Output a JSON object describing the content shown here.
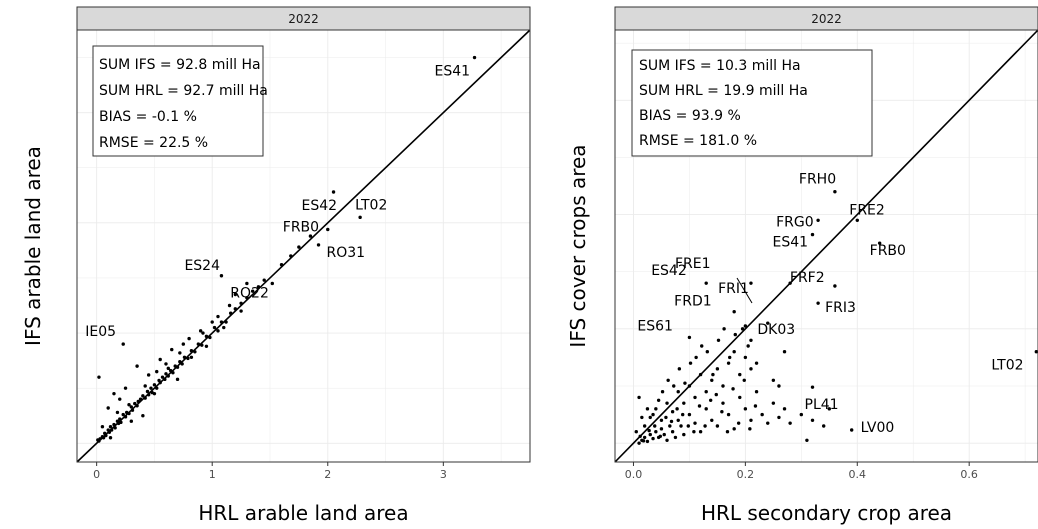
{
  "chart_data": [
    {
      "type": "scatter",
      "facet": "2022",
      "xlabel": "HRL arable land area",
      "ylabel": "IFS arable land area",
      "xlim": [
        -0.17,
        3.75
      ],
      "ylim": [
        -0.17,
        3.75
      ],
      "x_ticks": [
        0,
        1,
        2,
        3
      ],
      "grid": true,
      "identity_line": true,
      "stats": [
        "SUM IFS = 92.8 mill Ha",
        "SUM HRL = 92.7 mill Ha",
        "BIAS =  -0.1 %",
        "RMSE = 22.5 %"
      ],
      "labeled_points": [
        {
          "label": "ES41",
          "x": 3.27,
          "y": 3.5
        },
        {
          "label": "ES42",
          "x": 2.05,
          "y": 2.28
        },
        {
          "label": "LT02",
          "x": 2.28,
          "y": 2.05
        },
        {
          "label": "FRB0",
          "x": 2.0,
          "y": 1.94
        },
        {
          "label": "RO31",
          "x": 1.92,
          "y": 1.8
        },
        {
          "label": "ES24",
          "x": 1.08,
          "y": 1.52
        },
        {
          "label": "RO22",
          "x": 1.52,
          "y": 1.45
        },
        {
          "label": "IE05",
          "x": 0.23,
          "y": 0.9
        }
      ],
      "points": [
        [
          0.01,
          0.03
        ],
        [
          0.02,
          0.02
        ],
        [
          0.03,
          0.04
        ],
        [
          0.05,
          0.06
        ],
        [
          0.06,
          0.05
        ],
        [
          0.07,
          0.09
        ],
        [
          0.08,
          0.07
        ],
        [
          0.1,
          0.12
        ],
        [
          0.11,
          0.1
        ],
        [
          0.12,
          0.15
        ],
        [
          0.13,
          0.12
        ],
        [
          0.15,
          0.17
        ],
        [
          0.16,
          0.14
        ],
        [
          0.18,
          0.2
        ],
        [
          0.19,
          0.18
        ],
        [
          0.2,
          0.22
        ],
        [
          0.21,
          0.19
        ],
        [
          0.23,
          0.26
        ],
        [
          0.25,
          0.24
        ],
        [
          0.26,
          0.28
        ],
        [
          0.28,
          0.27
        ],
        [
          0.3,
          0.33
        ],
        [
          0.31,
          0.3
        ],
        [
          0.33,
          0.36
        ],
        [
          0.35,
          0.34
        ],
        [
          0.36,
          0.38
        ],
        [
          0.38,
          0.4
        ],
        [
          0.4,
          0.43
        ],
        [
          0.42,
          0.41
        ],
        [
          0.44,
          0.47
        ],
        [
          0.45,
          0.44
        ],
        [
          0.47,
          0.5
        ],
        [
          0.48,
          0.46
        ],
        [
          0.5,
          0.53
        ],
        [
          0.52,
          0.5
        ],
        [
          0.54,
          0.57
        ],
        [
          0.55,
          0.55
        ],
        [
          0.57,
          0.6
        ],
        [
          0.59,
          0.58
        ],
        [
          0.6,
          0.63
        ],
        [
          0.62,
          0.61
        ],
        [
          0.64,
          0.66
        ],
        [
          0.66,
          0.64
        ],
        [
          0.68,
          0.7
        ],
        [
          0.7,
          0.69
        ],
        [
          0.72,
          0.74
        ],
        [
          0.74,
          0.72
        ],
        [
          0.76,
          0.78
        ],
        [
          0.79,
          0.77
        ],
        [
          0.82,
          0.84
        ],
        [
          0.85,
          0.83
        ],
        [
          0.88,
          0.9
        ],
        [
          0.91,
          0.89
        ],
        [
          0.95,
          0.97
        ],
        [
          0.98,
          0.96
        ],
        [
          1.02,
          1.05
        ],
        [
          1.05,
          1.02
        ],
        [
          1.08,
          1.1
        ],
        [
          1.12,
          1.1
        ],
        [
          1.16,
          1.18
        ],
        [
          1.2,
          1.22
        ],
        [
          1.25,
          1.27
        ],
        [
          1.3,
          1.32
        ],
        [
          1.35,
          1.38
        ],
        [
          1.4,
          1.42
        ],
        [
          1.45,
          1.48
        ],
        [
          1.6,
          1.62
        ],
        [
          1.68,
          1.7
        ],
        [
          1.75,
          1.78
        ],
        [
          1.85,
          1.88
        ],
        [
          0.02,
          0.6
        ],
        [
          0.15,
          0.45
        ],
        [
          0.25,
          0.5
        ],
        [
          0.35,
          0.7
        ],
        [
          0.45,
          0.62
        ],
        [
          0.55,
          0.76
        ],
        [
          0.65,
          0.85
        ],
        [
          0.75,
          0.9
        ],
        [
          0.9,
          1.02
        ],
        [
          1.0,
          1.1
        ],
        [
          1.1,
          1.05
        ],
        [
          1.2,
          1.35
        ],
        [
          1.3,
          1.45
        ],
        [
          0.1,
          0.32
        ],
        [
          0.2,
          0.4
        ],
        [
          0.3,
          0.2
        ],
        [
          0.4,
          0.25
        ],
        [
          0.5,
          0.45
        ],
        [
          0.6,
          0.72
        ],
        [
          0.7,
          0.58
        ],
        [
          0.8,
          0.95
        ],
        [
          0.95,
          0.88
        ],
        [
          1.15,
          1.25
        ],
        [
          1.25,
          1.2
        ],
        [
          0.05,
          0.15
        ],
        [
          0.12,
          0.05
        ],
        [
          0.18,
          0.28
        ],
        [
          0.28,
          0.35
        ],
        [
          0.42,
          0.52
        ],
        [
          0.52,
          0.65
        ],
        [
          0.62,
          0.68
        ],
        [
          0.72,
          0.82
        ],
        [
          0.82,
          0.78
        ],
        [
          0.92,
          1.0
        ],
        [
          1.05,
          1.15
        ]
      ]
    },
    {
      "type": "scatter",
      "facet": "2022",
      "xlabel": "HRL secondary crop area",
      "ylabel": "IFS cover crops area",
      "xlim": [
        -0.033,
        0.723
      ],
      "ylim": [
        -0.033,
        0.723
      ],
      "x_ticks": [
        0.0,
        0.2,
        0.4,
        0.6
      ],
      "x_tick_labels": [
        "0.0",
        "0.2",
        "0.4",
        "0.6"
      ],
      "grid": true,
      "identity_line": true,
      "stats": [
        "SUM IFS = 10.3 mill Ha",
        "SUM HRL = 19.9 mill Ha",
        "BIAS =  93.9 %",
        "RMSE = 181.0 %"
      ],
      "labeled_points": [
        {
          "label": "FRH0",
          "x": 0.36,
          "y": 0.44
        },
        {
          "label": "FRG0",
          "x": 0.33,
          "y": 0.39
        },
        {
          "label": "FRE2",
          "x": 0.4,
          "y": 0.39
        },
        {
          "label": "ES41",
          "x": 0.32,
          "y": 0.365
        },
        {
          "label": "FRE1",
          "x": 0.21,
          "y": 0.28
        },
        {
          "label": "FRB0",
          "x": 0.44,
          "y": 0.35
        },
        {
          "label": "FRI1",
          "x": 0.28,
          "y": 0.28
        },
        {
          "label": "ES42",
          "x": 0.13,
          "y": 0.28
        },
        {
          "label": "FRF2",
          "x": 0.36,
          "y": 0.275
        },
        {
          "label": "FRD1",
          "x": 0.18,
          "y": 0.23
        },
        {
          "label": "FRI3",
          "x": 0.33,
          "y": 0.245
        },
        {
          "label": "DK03",
          "x": 0.2,
          "y": 0.205
        },
        {
          "label": "ES61",
          "x": 0.1,
          "y": 0.185
        },
        {
          "label": "LT02",
          "x": 0.72,
          "y": 0.16
        },
        {
          "label": "PL41",
          "x": 0.32,
          "y": 0.098
        },
        {
          "label": "LV00",
          "x": 0.39,
          "y": 0.023
        }
      ],
      "points": [
        [
          0.01,
          0.0
        ],
        [
          0.015,
          0.005
        ],
        [
          0.02,
          0.01
        ],
        [
          0.025,
          0.003
        ],
        [
          0.03,
          0.015
        ],
        [
          0.035,
          0.008
        ],
        [
          0.04,
          0.02
        ],
        [
          0.045,
          0.01
        ],
        [
          0.05,
          0.025
        ],
        [
          0.055,
          0.015
        ],
        [
          0.06,
          0.005
        ],
        [
          0.065,
          0.03
        ],
        [
          0.07,
          0.02
        ],
        [
          0.075,
          0.01
        ],
        [
          0.08,
          0.04
        ],
        [
          0.085,
          0.03
        ],
        [
          0.09,
          0.015
        ],
        [
          0.1,
          0.05
        ],
        [
          0.11,
          0.035
        ],
        [
          0.12,
          0.02
        ],
        [
          0.13,
          0.06
        ],
        [
          0.14,
          0.04
        ],
        [
          0.15,
          0.03
        ],
        [
          0.16,
          0.07
        ],
        [
          0.17,
          0.05
        ],
        [
          0.18,
          0.025
        ],
        [
          0.19,
          0.08
        ],
        [
          0.2,
          0.06
        ],
        [
          0.21,
          0.04
        ],
        [
          0.22,
          0.09
        ],
        [
          0.23,
          0.05
        ],
        [
          0.24,
          0.035
        ],
        [
          0.25,
          0.07
        ],
        [
          0.26,
          0.045
        ],
        [
          0.27,
          0.06
        ],
        [
          0.28,
          0.035
        ],
        [
          0.3,
          0.05
        ],
        [
          0.32,
          0.04
        ],
        [
          0.34,
          0.03
        ],
        [
          0.35,
          0.06
        ],
        [
          0.02,
          0.03
        ],
        [
          0.03,
          0.045
        ],
        [
          0.04,
          0.06
        ],
        [
          0.05,
          0.04
        ],
        [
          0.06,
          0.07
        ],
        [
          0.07,
          0.055
        ],
        [
          0.08,
          0.09
        ],
        [
          0.09,
          0.07
        ],
        [
          0.1,
          0.1
        ],
        [
          0.11,
          0.08
        ],
        [
          0.12,
          0.12
        ],
        [
          0.13,
          0.09
        ],
        [
          0.14,
          0.11
        ],
        [
          0.15,
          0.13
        ],
        [
          0.16,
          0.1
        ],
        [
          0.17,
          0.14
        ],
        [
          0.18,
          0.16
        ],
        [
          0.19,
          0.12
        ],
        [
          0.2,
          0.15
        ],
        [
          0.21,
          0.18
        ],
        [
          0.22,
          0.14
        ],
        [
          0.01,
          0.08
        ],
        [
          0.005,
          0.02
        ],
        [
          0.012,
          0.012
        ],
        [
          0.018,
          0.004
        ],
        [
          0.028,
          0.022
        ],
        [
          0.038,
          0.03
        ],
        [
          0.048,
          0.012
        ],
        [
          0.058,
          0.045
        ],
        [
          0.068,
          0.038
        ],
        [
          0.078,
          0.06
        ],
        [
          0.088,
          0.05
        ],
        [
          0.098,
          0.03
        ],
        [
          0.108,
          0.02
        ],
        [
          0.118,
          0.065
        ],
        [
          0.128,
          0.03
        ],
        [
          0.138,
          0.075
        ],
        [
          0.148,
          0.085
        ],
        [
          0.158,
          0.055
        ],
        [
          0.168,
          0.02
        ],
        [
          0.178,
          0.095
        ],
        [
          0.188,
          0.035
        ],
        [
          0.198,
          0.11
        ],
        [
          0.208,
          0.025
        ],
        [
          0.218,
          0.065
        ],
        [
          0.25,
          0.11
        ],
        [
          0.26,
          0.1
        ],
        [
          0.31,
          0.005
        ],
        [
          0.015,
          0.045
        ],
        [
          0.025,
          0.06
        ],
        [
          0.035,
          0.05
        ],
        [
          0.045,
          0.075
        ],
        [
          0.052,
          0.09
        ],
        [
          0.062,
          0.11
        ],
        [
          0.072,
          0.1
        ],
        [
          0.082,
          0.13
        ],
        [
          0.092,
          0.105
        ],
        [
          0.102,
          0.14
        ],
        [
          0.112,
          0.15
        ],
        [
          0.122,
          0.17
        ],
        [
          0.132,
          0.16
        ],
        [
          0.142,
          0.12
        ],
        [
          0.152,
          0.18
        ],
        [
          0.162,
          0.2
        ],
        [
          0.172,
          0.15
        ],
        [
          0.182,
          0.19
        ],
        [
          0.195,
          0.2
        ],
        [
          0.205,
          0.17
        ],
        [
          0.21,
          0.13
        ],
        [
          0.24,
          0.21
        ],
        [
          0.27,
          0.16
        ]
      ]
    }
  ]
}
